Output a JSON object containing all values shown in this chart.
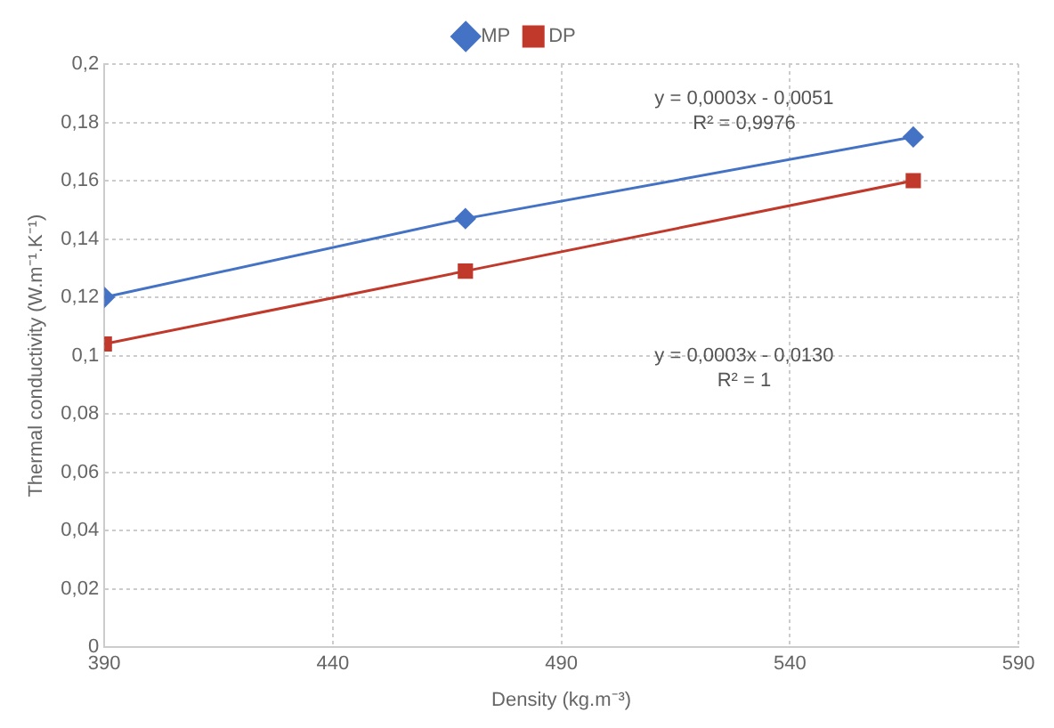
{
  "chart_data": {
    "type": "line",
    "xlabel": "Density (kg.m⁻³)",
    "ylabel": "Thermal conductivity (W.m⁻¹.K⁻¹)",
    "series": [
      {
        "name": "MP",
        "color": "#4472c4",
        "marker": "diamond",
        "x": [
          390,
          469,
          567
        ],
        "values": [
          0.12,
          0.147,
          0.175
        ]
      },
      {
        "name": "DP",
        "color": "#c0392b",
        "marker": "square",
        "x": [
          390,
          469,
          567
        ],
        "values": [
          0.104,
          0.129,
          0.16
        ]
      }
    ],
    "xlim": [
      390,
      590
    ],
    "xticks": [
      390,
      440,
      490,
      540,
      590
    ],
    "ylim": [
      0,
      0.2
    ],
    "yticks": [
      0,
      {
        "value": 0.02,
        "label": "0,02"
      },
      {
        "value": 0.04,
        "label": "0,04"
      },
      {
        "value": 0.06,
        "label": "0,06"
      },
      {
        "value": 0.08,
        "label": "0,08"
      },
      {
        "value": 0.1,
        "label": "0,1"
      },
      {
        "value": 0.12,
        "label": "0,12"
      },
      {
        "value": 0.14,
        "label": "0,14"
      },
      {
        "value": 0.16,
        "label": "0,16"
      },
      {
        "value": 0.18,
        "label": "0,18"
      },
      {
        "value": 0.2,
        "label": "0,2"
      }
    ],
    "annotations": [
      "y = 0,0003x - 0,0051\nR² = 0,9976",
      "y = 0,0003x - 0,0130\nR² = 1"
    ],
    "grid": true,
    "legend": "top",
    "line_style": "solid"
  }
}
